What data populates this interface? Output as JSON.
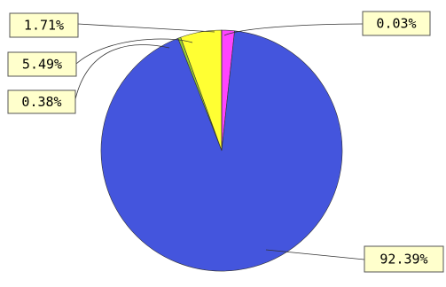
{
  "chart_data": {
    "type": "pie",
    "title": "",
    "start_angle_deg": 0,
    "direction": "clockwise",
    "slices": [
      {
        "value": 1.71,
        "label": "1.71%",
        "color": "#ff44ff",
        "label_side": "left"
      },
      {
        "value": 92.39,
        "label": "92.39%",
        "color": "#4455dd",
        "label_side": "right"
      },
      {
        "value": 0.38,
        "label": "0.38%",
        "color": "#99cc33",
        "label_side": "left"
      },
      {
        "value": 5.49,
        "label": "5.49%",
        "color": "#ffff33",
        "label_side": "left"
      },
      {
        "value": 0.03,
        "label": "0.03%",
        "color": "#ff44ff",
        "label_side": "right"
      }
    ]
  }
}
